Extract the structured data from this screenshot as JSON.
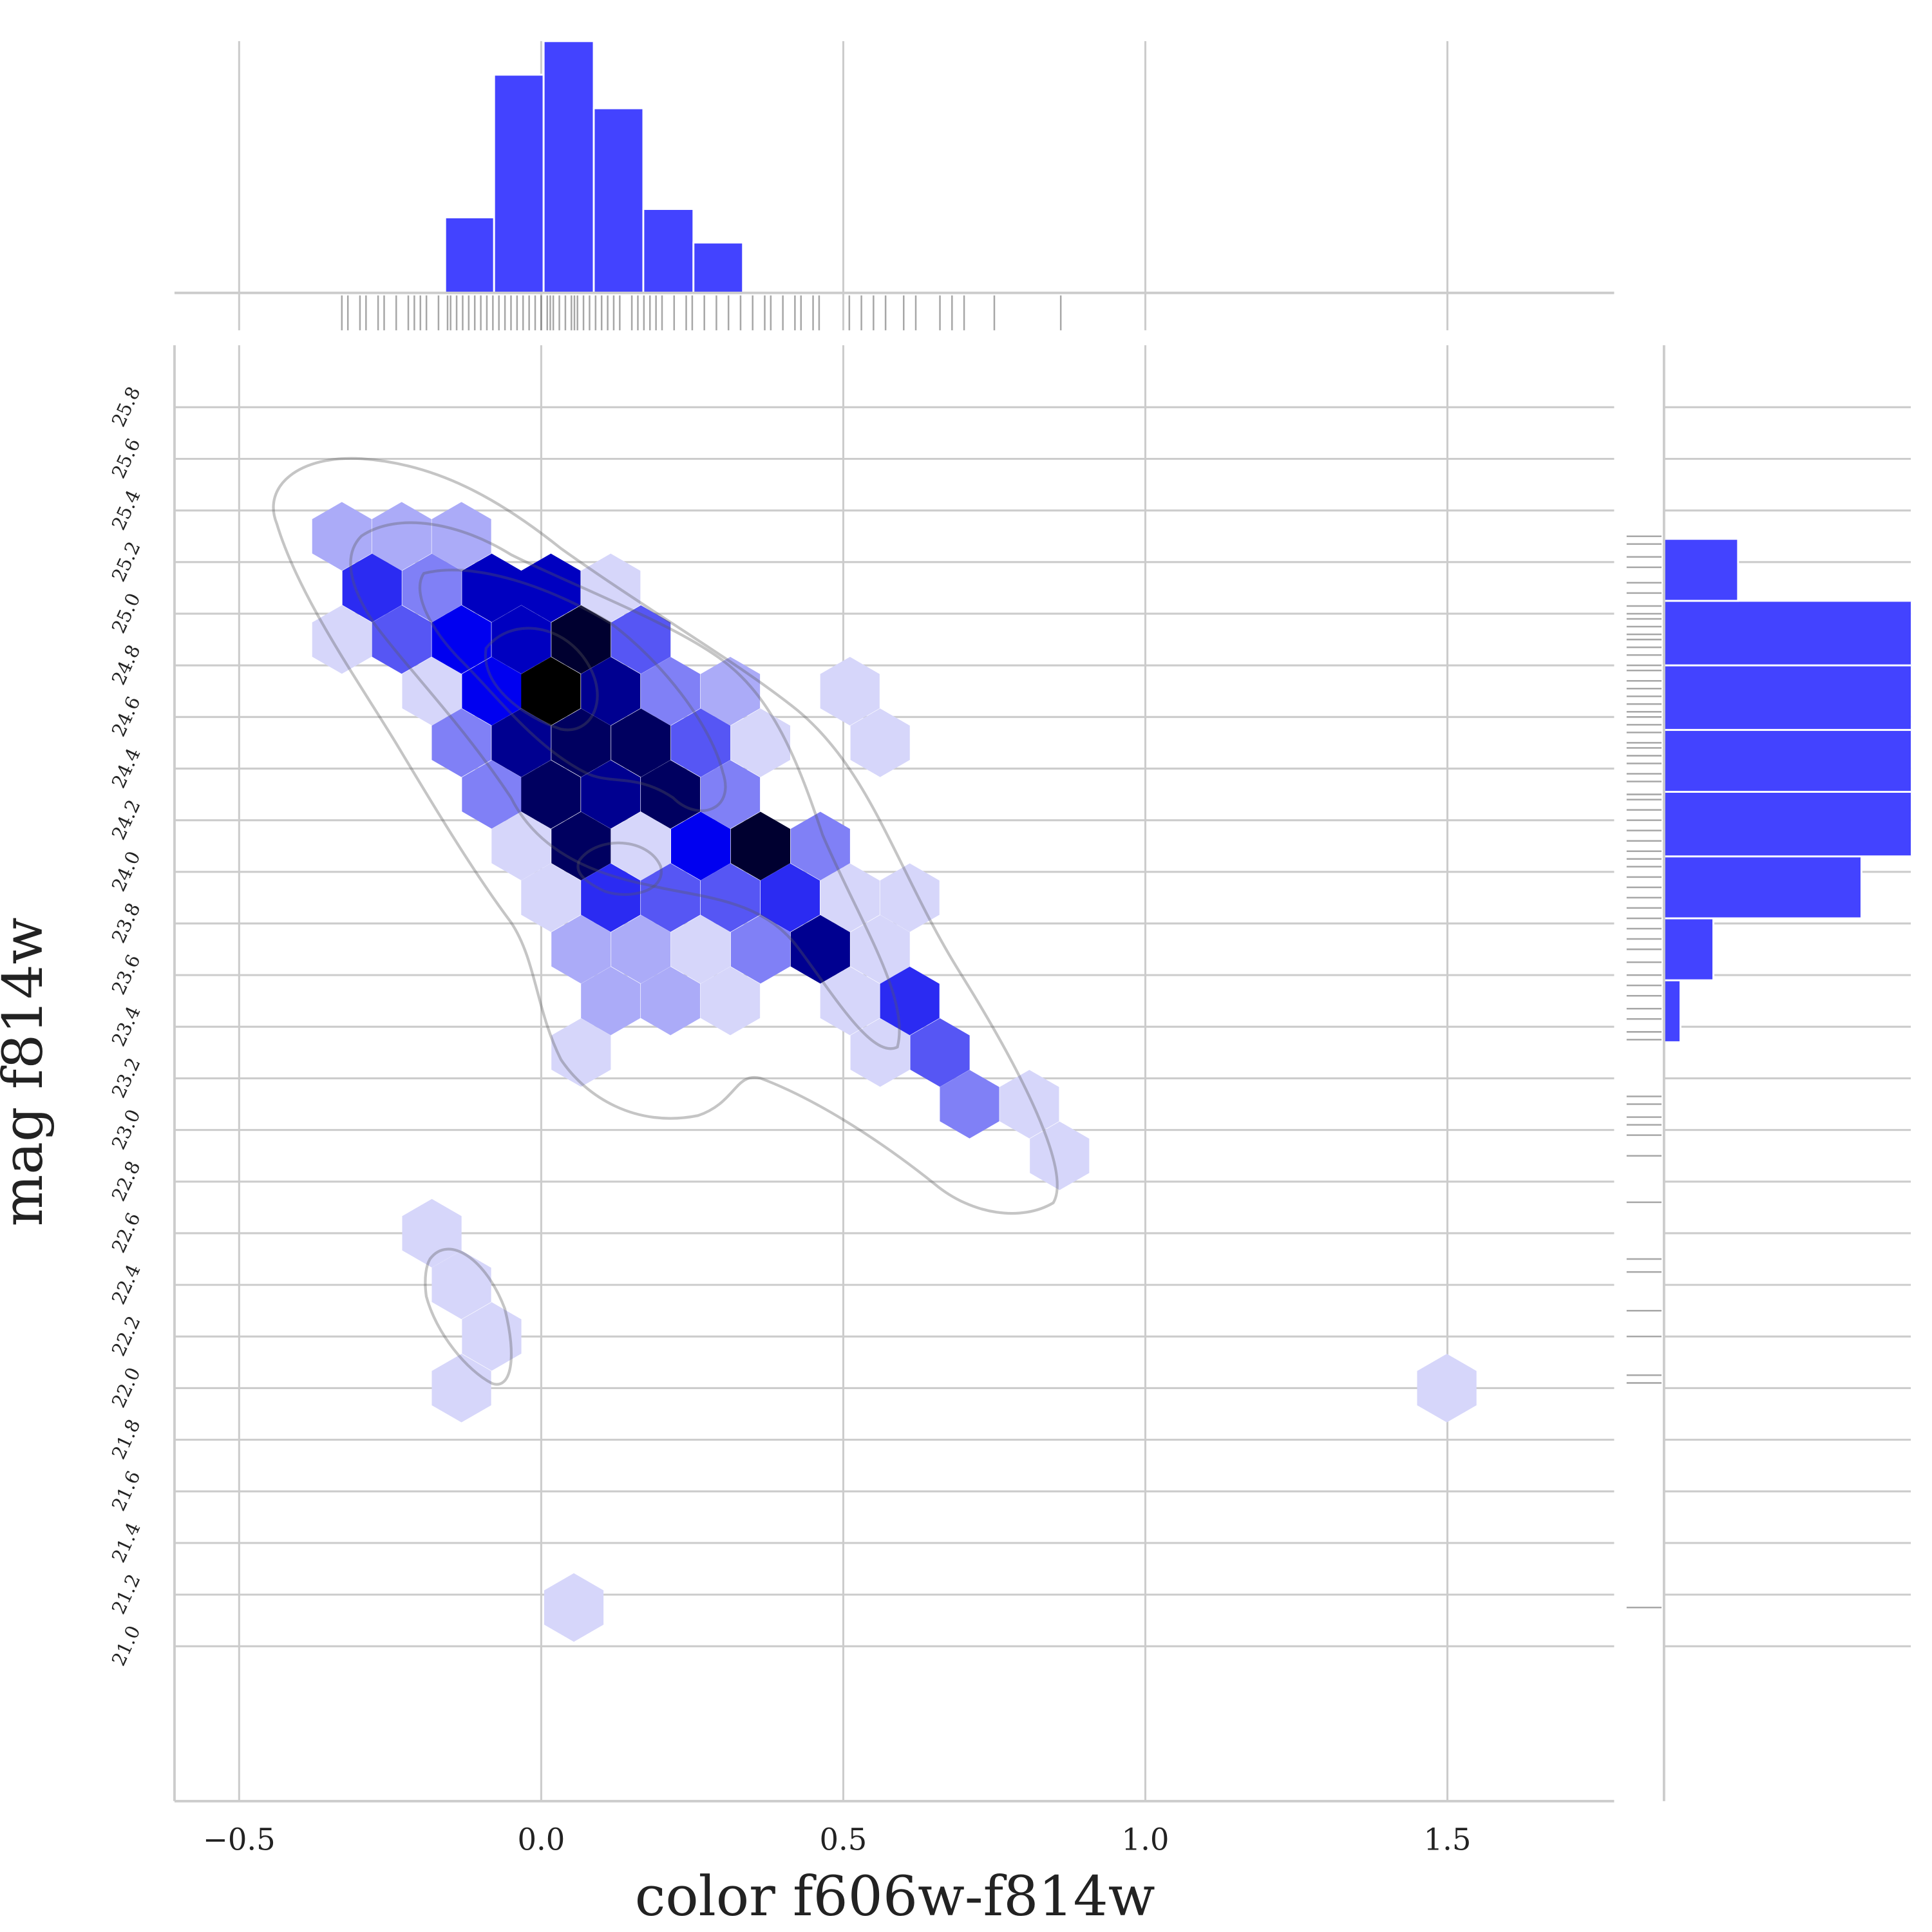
{
  "chart_data": {
    "type": "jointplot",
    "xlabel": "color f606w-f814w",
    "ylabel": "mag f814w",
    "xlim": [
      -0.607,
      1.776
    ],
    "ylim": [
      20.4,
      26.04
    ],
    "xticks": [
      {
        "value": -0.5,
        "label": "−0.5"
      },
      {
        "value": 0,
        "label": "0.0"
      },
      0.5,
      {
        "value": 1,
        "label": "1.0"
      },
      1.5
    ],
    "yticks": [
      {
        "value": 21,
        "label": "21.0"
      },
      21.2,
      21.4,
      21.6,
      21.8,
      {
        "value": 22,
        "label": "22.0"
      },
      22.2,
      22.4,
      22.6,
      22.8,
      {
        "value": 23,
        "label": "23.0"
      },
      23.2,
      23.4,
      23.6,
      23.8,
      {
        "value": 24,
        "label": "24.0"
      },
      24.2,
      24.4,
      24.6,
      24.8,
      {
        "value": 25,
        "label": "25.0"
      },
      25.2,
      25.4,
      25.6,
      25.8
    ],
    "grid": true,
    "hexbin": {
      "x": [
        -0.33,
        -0.231,
        -0.132,
        -0.28,
        -0.181,
        -0.082,
        0.016,
        0.115,
        -0.33,
        -0.231,
        -0.132,
        -0.033,
        0.066,
        0.165,
        -0.181,
        -0.082,
        0.016,
        0.115,
        0.214,
        0.313,
        0.511,
        -0.132,
        -0.033,
        0.066,
        0.165,
        0.264,
        0.363,
        0.561,
        -0.082,
        0.016,
        0.115,
        0.214,
        0.313,
        -0.033,
        0.066,
        0.165,
        0.264,
        0.363,
        0.462,
        0.016,
        0.115,
        0.214,
        0.313,
        0.412,
        0.511,
        0.61,
        0.066,
        0.165,
        0.264,
        0.363,
        0.462,
        0.561,
        0.115,
        0.214,
        0.313,
        0.511,
        0.61,
        0.066,
        0.561,
        0.66,
        0.709,
        0.808,
        0.858,
        -0.181,
        -0.132,
        -0.082,
        -0.132,
        1.499,
        0.054
      ],
      "y": [
        25.3,
        25.3,
        25.3,
        25.1,
        25.1,
        25.1,
        25.1,
        25.1,
        24.9,
        24.9,
        24.9,
        24.9,
        24.9,
        24.9,
        24.7,
        24.7,
        24.7,
        24.7,
        24.7,
        24.7,
        24.7,
        24.5,
        24.5,
        24.5,
        24.5,
        24.5,
        24.5,
        24.5,
        24.3,
        24.3,
        24.3,
        24.3,
        24.3,
        24.1,
        24.1,
        24.1,
        24.1,
        24.1,
        24.1,
        23.9,
        23.9,
        23.9,
        23.9,
        23.9,
        23.9,
        23.9,
        23.7,
        23.7,
        23.7,
        23.7,
        23.7,
        23.7,
        23.5,
        23.5,
        23.5,
        23.5,
        23.5,
        23.3,
        23.3,
        23.3,
        23.1,
        23.1,
        22.9,
        22.6,
        22.4,
        22.2,
        22.0,
        22.0,
        21.15
      ],
      "counts": [
        2,
        2,
        2,
        5,
        3,
        7,
        7,
        1,
        1,
        4,
        6,
        7,
        10,
        4,
        1,
        6,
        11,
        8,
        3,
        2,
        1,
        3,
        8,
        9,
        9,
        4,
        1,
        1,
        3,
        9,
        8,
        9,
        3,
        1,
        9,
        1,
        6,
        10,
        3,
        1,
        5,
        4,
        4,
        5,
        1,
        1,
        2,
        2,
        1,
        3,
        8,
        1,
        2,
        2,
        1,
        1,
        5,
        1,
        1,
        4,
        3,
        1,
        1,
        1,
        1,
        1,
        1,
        1,
        1
      ],
      "cmap": [
        "#d6d6fa",
        "#0000f0",
        "#000000"
      ]
    },
    "marginal_x": {
      "type": "histogram",
      "bins": [
        -0.159,
        -0.078,
        0.004,
        0.087,
        0.169,
        0.252,
        0.334
      ],
      "counts": [
        9,
        26,
        30,
        22,
        10,
        6
      ],
      "ylim": [
        0,
        30
      ],
      "color": "#4343ff"
    },
    "marginal_y": {
      "type": "histogram",
      "bins": [
        23.34,
        23.58,
        23.82,
        24.06,
        24.31,
        24.55,
        24.8,
        25.05,
        25.29
      ],
      "counts": [
        2,
        6,
        24,
        31,
        34,
        35,
        32,
        9
      ],
      "xlim": [
        0,
        30
      ],
      "color": "#4343ff"
    },
    "rug_x": [
      -0.33,
      -0.32,
      -0.3,
      -0.29,
      -0.27,
      -0.26,
      -0.24,
      -0.22,
      -0.21,
      -0.2,
      -0.19,
      -0.17,
      -0.155,
      -0.15,
      -0.14,
      -0.13,
      -0.12,
      -0.11,
      -0.1,
      -0.09,
      -0.08,
      -0.07,
      -0.06,
      -0.05,
      -0.04,
      -0.03,
      -0.02,
      -0.01,
      0.0,
      0.01,
      0.015,
      0.02,
      0.03,
      0.04,
      0.05,
      0.055,
      0.06,
      0.07,
      0.08,
      0.09,
      0.1,
      0.11,
      0.12,
      0.13,
      0.15,
      0.16,
      0.17,
      0.18,
      0.19,
      0.2,
      0.22,
      0.24,
      0.25,
      0.27,
      0.29,
      0.31,
      0.33,
      0.35,
      0.37,
      0.38,
      0.4,
      0.42,
      0.43,
      0.45,
      0.46,
      0.51,
      0.53,
      0.55,
      0.57,
      0.6,
      0.62,
      0.66,
      0.68,
      0.7,
      0.75,
      0.86
    ],
    "rug_y": [
      25.3,
      25.27,
      25.22,
      25.18,
      25.12,
      25.08,
      25.03,
      25.0,
      24.98,
      24.95,
      24.92,
      24.9,
      24.87,
      24.84,
      24.8,
      24.78,
      24.74,
      24.71,
      24.68,
      24.65,
      24.62,
      24.6,
      24.57,
      24.54,
      24.5,
      24.48,
      24.45,
      24.42,
      24.38,
      24.35,
      24.3,
      24.28,
      24.24,
      24.2,
      24.16,
      24.12,
      24.08,
      24.05,
      24.02,
      23.98,
      23.94,
      23.9,
      23.86,
      23.82,
      23.78,
      23.74,
      23.7,
      23.65,
      23.6,
      23.56,
      23.52,
      23.47,
      23.43,
      23.38,
      23.35,
      23.13,
      23.1,
      23.05,
      23.02,
      22.98,
      22.9,
      22.72,
      22.5,
      22.45,
      22.3,
      22.2,
      22.05,
      22.02,
      21.15
    ]
  }
}
